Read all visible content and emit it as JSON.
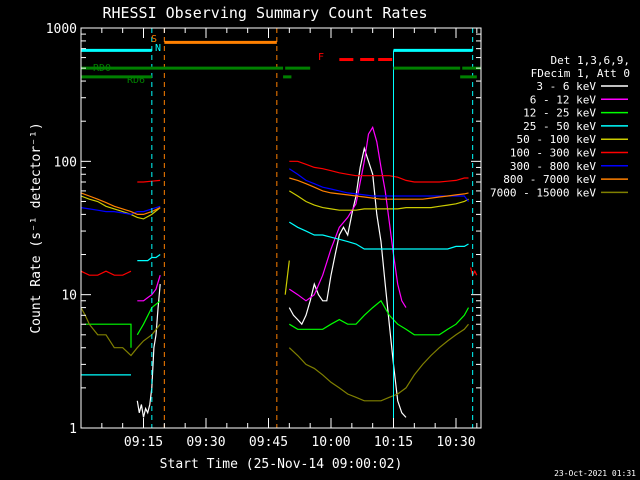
{
  "chart_data": {
    "type": "line",
    "title": "RHESSI Observing Summary Count Rates",
    "xlabel": "Start Time (25-Nov-14 09:00:02)",
    "ylabel": "Count Rate (s⁻¹ detector⁻¹)",
    "y_scale": "log",
    "ylim": [
      1,
      1000
    ],
    "xlim_minutes": [
      0,
      96
    ],
    "y_ticks": [
      1,
      10,
      100,
      1000
    ],
    "x_tick_labels": [
      "09:15",
      "09:30",
      "09:45",
      "10:00",
      "10:15",
      "10:30"
    ],
    "x_tick_minutes": [
      15,
      30,
      45,
      60,
      75,
      90
    ],
    "legend_header": [
      "Det 1,3,6,9,",
      "FDecim 1, Att 0"
    ],
    "legend_position": "right",
    "timestamp": "23-Oct-2021 01:31",
    "series": [
      {
        "name": "3 - 6 keV",
        "color": "#ffffff",
        "segments": [
          {
            "t": [
              13.5,
              14,
              14.5,
              15,
              15.5,
              16,
              16.5,
              17,
              17.5,
              18,
              18.5,
              19
            ],
            "y": [
              1.6,
              1.3,
              1.5,
              1.2,
              1.4,
              1.3,
              1.5,
              2,
              4,
              5,
              8,
              12
            ]
          },
          {
            "t": [
              50,
              51,
              52,
              53,
              54,
              55,
              56,
              57,
              58,
              59,
              60,
              61,
              62,
              63,
              64,
              65,
              66,
              67,
              68,
              69,
              70,
              71,
              72,
              73,
              74,
              75,
              76,
              77,
              78
            ],
            "y": [
              8,
              7,
              6.5,
              6,
              7,
              9,
              12,
              10,
              9,
              9,
              14,
              20,
              28,
              32,
              28,
              40,
              55,
              90,
              125,
              100,
              80,
              40,
              25,
              12,
              6,
              3,
              1.6,
              1.3,
              1.2
            ]
          }
        ]
      },
      {
        "name": "6 - 12 keV",
        "color": "#ff00ff",
        "segments": [
          {
            "t": [
              13.5,
              15,
              16,
              17,
              18,
              19
            ],
            "y": [
              9,
              9,
              9.5,
              10,
              11,
              14
            ]
          },
          {
            "t": [
              50,
              52,
              54,
              56,
              58,
              60,
              62,
              64,
              66,
              68,
              69,
              70,
              71,
              72,
              73,
              74,
              75,
              76,
              77,
              78
            ],
            "y": [
              11,
              10,
              9,
              10,
              14,
              22,
              32,
              38,
              48,
              100,
              160,
              180,
              140,
              90,
              60,
              35,
              20,
              12,
              9,
              8
            ]
          }
        ]
      },
      {
        "name": "12 - 25 keV",
        "color": "#00ff00",
        "segments": [
          {
            "t": [
              1,
              3,
              5,
              7,
              9,
              11,
              12,
              12
            ],
            "y": [
              6,
              6,
              6,
              6,
              6,
              6,
              6,
              4
            ]
          },
          {
            "t": [
              13.5,
              15,
              17,
              19
            ],
            "y": [
              5,
              6,
              8,
              9
            ]
          },
          {
            "t": [
              50,
              52,
              54,
              56,
              58,
              60,
              62,
              64,
              66,
              68,
              70,
              72,
              74,
              76,
              78,
              80,
              82,
              84,
              86,
              88,
              90,
              92,
              93
            ],
            "y": [
              6,
              5.5,
              5.5,
              5.5,
              5.5,
              6,
              6.5,
              6,
              6,
              7,
              8,
              9,
              7,
              6,
              5.5,
              5,
              5,
              5,
              5,
              5.5,
              6,
              7,
              8
            ]
          }
        ]
      },
      {
        "name": "25 - 50 keV",
        "color": "#00ffff",
        "segments": [
          {
            "t": [
              0,
              2,
              4,
              6,
              8,
              10,
              12
            ],
            "y": [
              2.5,
              2.5,
              2.5,
              2.5,
              2.5,
              2.5,
              2.5
            ]
          },
          {
            "t": [
              13.5,
              15,
              16,
              17,
              18,
              19
            ],
            "y": [
              18,
              18,
              18,
              19,
              19,
              20
            ]
          },
          {
            "t": [
              50,
              52,
              54,
              56,
              58,
              60,
              62,
              64,
              66,
              68,
              70,
              72,
              74,
              76,
              78,
              80,
              82,
              84,
              86,
              88,
              90,
              92,
              93
            ],
            "y": [
              35,
              32,
              30,
              28,
              28,
              27,
              26,
              25,
              24,
              22,
              22,
              22,
              22,
              22,
              22,
              22,
              22,
              22,
              22,
              22,
              23,
              23,
              24
            ]
          }
        ]
      },
      {
        "name": "50 - 100 keV",
        "color": "#cccc00",
        "segments": [
          {
            "t": [
              0,
              2,
              4,
              6,
              8,
              10,
              12,
              13.5,
              15,
              17,
              19
            ],
            "y": [
              55,
              52,
              50,
              46,
              44,
              42,
              40,
              38,
              37,
              40,
              45
            ]
          },
          {
            "t": [
              49,
              50
            ],
            "y": [
              10,
              18
            ]
          },
          {
            "t": [
              50,
              52,
              54,
              56,
              58,
              60,
              62,
              64,
              66,
              68,
              70,
              72,
              74,
              76,
              78,
              80,
              82,
              84,
              86,
              88,
              90,
              92,
              93
            ],
            "y": [
              60,
              55,
              50,
              47,
              45,
              44,
              43,
              43,
              43,
              44,
              44,
              44,
              44,
              44,
              45,
              45,
              45,
              45,
              46,
              47,
              48,
              50,
              52
            ]
          }
        ]
      },
      {
        "name": "100 - 300 keV",
        "color": "#ff0000",
        "segments": [
          {
            "t": [
              0,
              2,
              4,
              6,
              8,
              10,
              12
            ],
            "y": [
              15,
              14,
              14,
              15,
              14,
              14,
              15
            ]
          },
          {
            "t": [
              13.5,
              15,
              17,
              19
            ],
            "y": [
              70,
              70,
              71,
              72
            ]
          },
          {
            "t": [
              50,
              52,
              54,
              56,
              58,
              60,
              62,
              64,
              66,
              68,
              70,
              72,
              74,
              76,
              78,
              80,
              82,
              84,
              86,
              88,
              90,
              92,
              93
            ],
            "y": [
              100,
              100,
              95,
              90,
              88,
              85,
              82,
              80,
              78,
              78,
              78,
              78,
              78,
              76,
              72,
              70,
              70,
              70,
              70,
              71,
              72,
              75,
              75
            ]
          },
          {
            "t": [
              93.5,
              94,
              94.5,
              95
            ],
            "y": [
              16,
              14,
              15,
              14
            ]
          }
        ]
      },
      {
        "name": "300 - 800 keV",
        "color": "#0000ff",
        "segments": [
          {
            "t": [
              0,
              2,
              4,
              6,
              8,
              10,
              12,
              13.5,
              15,
              17,
              19
            ],
            "y": [
              45,
              44,
              43,
              42,
              42,
              41,
              40,
              42,
              42,
              44,
              46
            ]
          },
          {
            "t": [
              50,
              52,
              54,
              56,
              58,
              60,
              62,
              64,
              66,
              68,
              70,
              72,
              74,
              76,
              78,
              80,
              82,
              84,
              86,
              88,
              90,
              92,
              93
            ],
            "y": [
              88,
              80,
              72,
              68,
              64,
              62,
              60,
              58,
              57,
              56,
              55,
              55,
              55,
              55,
              55,
              55,
              55,
              55,
              55,
              55,
              55,
              55,
              50
            ]
          }
        ]
      },
      {
        "name": "800 - 7000 keV",
        "color": "#ff8000",
        "segments": [
          {
            "t": [
              0,
              2,
              4,
              6,
              8,
              10,
              12,
              13.5,
              15,
              17,
              19
            ],
            "y": [
              58,
              55,
              52,
              49,
              46,
              44,
              42,
              40,
              40,
              42,
              45
            ]
          },
          {
            "t": [
              50,
              52,
              54,
              56,
              58,
              60,
              62,
              64,
              66,
              68,
              70,
              72,
              74,
              76,
              78,
              80,
              82,
              84,
              86,
              88,
              90,
              92,
              93
            ],
            "y": [
              75,
              72,
              68,
              64,
              60,
              58,
              57,
              56,
              55,
              54,
              53,
              52,
              52,
              52,
              52,
              52,
              52,
              53,
              54,
              55,
              56,
              57,
              58
            ]
          }
        ]
      },
      {
        "name": "7000 - 15000 keV",
        "color": "#808000",
        "segments": [
          {
            "t": [
              0,
              1,
              2,
              4,
              6,
              8,
              10,
              12,
              13.5,
              15,
              17,
              19
            ],
            "y": [
              8,
              7,
              6,
              5,
              5,
              4,
              4,
              3.5,
              4,
              4.5,
              5,
              6
            ]
          },
          {
            "t": [
              50,
              52,
              54,
              56,
              58,
              60,
              62,
              64,
              66,
              68,
              70,
              72,
              74,
              76,
              78,
              80,
              82,
              84,
              86,
              88,
              90,
              92,
              93
            ],
            "y": [
              4,
              3.5,
              3,
              2.8,
              2.5,
              2.2,
              2,
              1.8,
              1.7,
              1.6,
              1.6,
              1.6,
              1.7,
              1.8,
              2,
              2.5,
              3,
              3.5,
              4,
              4.5,
              5,
              5.5,
              6
            ]
          }
        ]
      }
    ],
    "annotations": {
      "rd0": {
        "label": "RD0",
        "color": "#008000",
        "level": 500,
        "segments": [
          [
            0,
            48.5
          ],
          [
            49,
            55
          ],
          [
            75,
            91
          ],
          [
            91.5,
            96
          ]
        ]
      },
      "rd6": {
        "label": "RD6",
        "color": "#008000",
        "level": 430,
        "segments": [
          [
            0,
            17
          ],
          [
            48.5,
            50.5
          ],
          [
            91,
            95
          ]
        ]
      },
      "saa": {
        "label": "S",
        "color": "#ff8000",
        "level": 780,
        "segments": [
          [
            20,
            47
          ]
        ],
        "boundaries": [
          20,
          47
        ]
      },
      "night": {
        "label": "N",
        "color": "#00ffff",
        "level": 680,
        "segments": [
          [
            0,
            17
          ],
          [
            75,
            94
          ]
        ],
        "boundaries": [
          17,
          94
        ]
      },
      "flare": {
        "label": "F",
        "color": "#ff0000",
        "level": 580,
        "segments": [
          [
            62,
            66
          ],
          [
            67,
            75
          ]
        ]
      },
      "cyan_solid_line_minutes": 75
    }
  }
}
